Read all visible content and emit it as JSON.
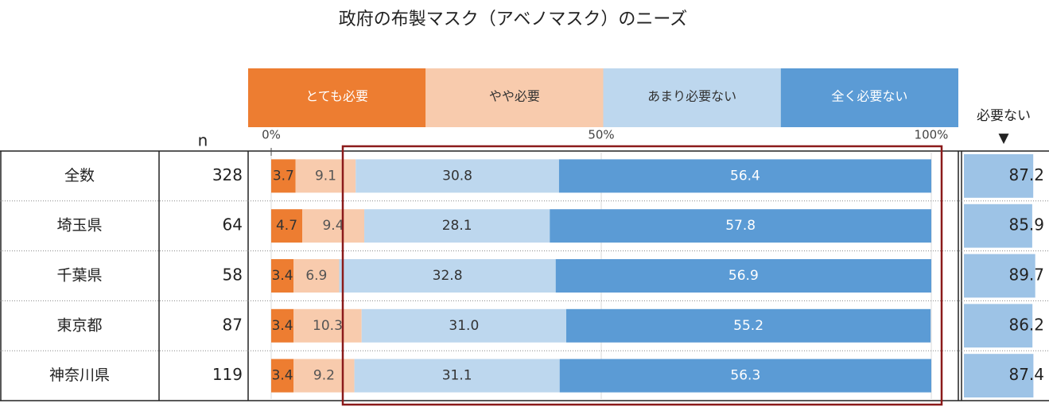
{
  "chart_data": {
    "type": "stacked-bar",
    "title": "政府の布製マスク（アベノマスク）のニーズ",
    "categories": [
      "全数",
      "埼玉県",
      "千葉県",
      "東京都",
      "神奈川県"
    ],
    "n_label": "n",
    "n": [
      328,
      64,
      58,
      87,
      119
    ],
    "xlim": [
      0,
      100
    ],
    "xticks": [
      {
        "value": 0,
        "label": "0%"
      },
      {
        "value": 50,
        "label": "50%"
      },
      {
        "value": 100,
        "label": "100%"
      }
    ],
    "series": [
      {
        "name": "とても必要",
        "color": "#ed7d31",
        "values": [
          3.7,
          4.7,
          3.4,
          3.4,
          3.4
        ],
        "value_labels": [
          "3.7",
          "4.7",
          "3.4",
          "3.4",
          "3.4"
        ]
      },
      {
        "name": "やや必要",
        "color": "#f8cbad",
        "values": [
          9.1,
          9.4,
          6.9,
          10.3,
          9.2
        ],
        "value_labels": [
          "9.1",
          "9.4",
          "6.9",
          "10.3",
          "9.2"
        ]
      },
      {
        "name": "あまり必要ない",
        "color": "#bdd7ee",
        "values": [
          30.8,
          28.1,
          32.8,
          31.0,
          31.1
        ],
        "value_labels": [
          "30.8",
          "28.1",
          "32.8",
          "31.0",
          "31.1"
        ]
      },
      {
        "name": "全く必要ない",
        "color": "#5b9bd5",
        "values": [
          56.4,
          57.8,
          56.9,
          55.2,
          56.3
        ],
        "value_labels": [
          "56.4",
          "57.8",
          "56.9",
          "55.2",
          "56.3"
        ]
      }
    ],
    "summary": {
      "title": "必要ない",
      "marker": "▼",
      "color": "#9dc3e6",
      "values": [
        87.2,
        85.9,
        89.7,
        86.2,
        87.4
      ]
    }
  }
}
